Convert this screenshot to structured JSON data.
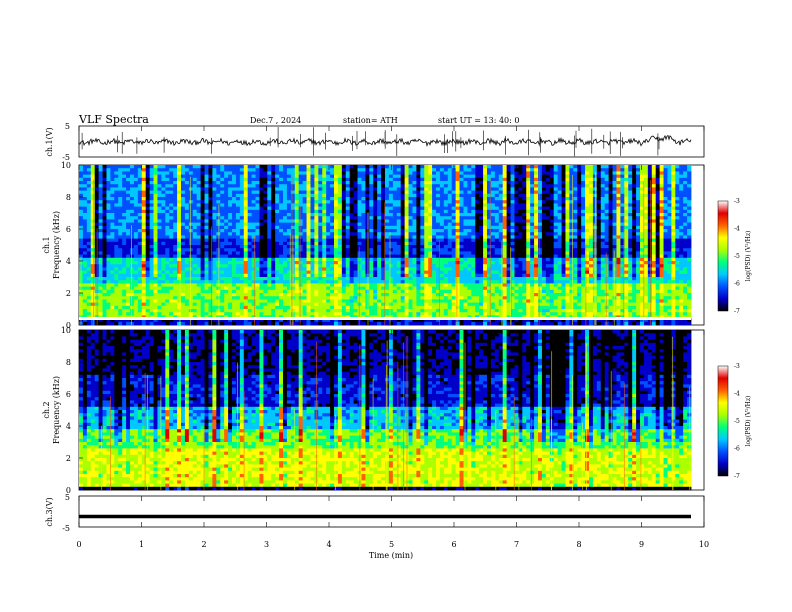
{
  "header": {
    "title": "VLF  Spectra",
    "date": "Dec.7  , 2024",
    "station": "station= ATH",
    "start": "start  UT  =   13: 40: 0"
  },
  "colors": {
    "colormap": [
      "#000000",
      "#0000c8",
      "#0050ff",
      "#00c8ff",
      "#00ff7f",
      "#aaff00",
      "#ffff00",
      "#ff6000",
      "#e00000",
      "#ffffff"
    ]
  },
  "chart_data": [
    {
      "type": "line",
      "id": "ch1-waveform",
      "ylabel": "ch.1(V)",
      "ylim": [
        -5,
        5
      ],
      "yticks": [
        "5",
        "-5"
      ],
      "xlim": [
        0,
        10
      ],
      "baseline": 0,
      "note_trace_end_min": 9.8
    },
    {
      "type": "heatmap",
      "id": "ch1-spectrogram",
      "ylabel": "ch.1\nFrequency  (kHz)",
      "ylabel_line1": "ch.1",
      "ylabel_line2": "Frequency  (kHz)",
      "ylim": [
        0,
        10
      ],
      "yticks": [
        "0",
        "2",
        "4",
        "6",
        "8",
        "10"
      ],
      "xlim": [
        0,
        10
      ],
      "colorbar": {
        "label": "log(PSD) (V²/Hz)",
        "range": [
          -7,
          -3
        ],
        "ticks": [
          "-3",
          "-4",
          "-5",
          "-6",
          "-7"
        ]
      }
    },
    {
      "type": "heatmap",
      "id": "ch2-spectrogram",
      "ylabel_line1": "ch.2",
      "ylabel_line2": "Frequency  (kHz)",
      "ylim": [
        0,
        10
      ],
      "yticks": [
        "0",
        "2",
        "4",
        "6",
        "8",
        "10"
      ],
      "xlim": [
        0,
        10
      ],
      "colorbar": {
        "label": "log(PSD) (V²/Hz)",
        "range": [
          -7,
          -3
        ],
        "ticks": [
          "-3",
          "-4",
          "-5",
          "-6",
          "-7"
        ]
      }
    },
    {
      "type": "line",
      "id": "ch3-waveform",
      "ylabel": "ch.3(V)",
      "ylim": [
        -5,
        5
      ],
      "yticks": [
        "5",
        "-5"
      ],
      "xlim": [
        0,
        10
      ],
      "baseline": -1.6
    }
  ],
  "xaxis": {
    "label": "Time  (min)",
    "ticks": [
      "0",
      "1",
      "2",
      "3",
      "4",
      "5",
      "6",
      "7",
      "8",
      "9",
      "10"
    ],
    "range": [
      0,
      10
    ]
  }
}
